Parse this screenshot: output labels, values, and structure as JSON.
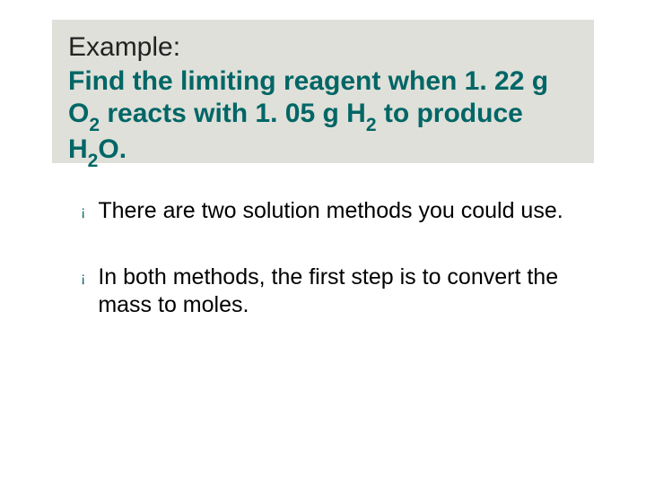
{
  "slide": {
    "title_box": {
      "background_color": "#dfe0d9",
      "label": "Example:",
      "label_color": "#222222",
      "label_fontsize": 30,
      "heading_parts": {
        "p1": "Find the limiting reagent when 1. 22 g O",
        "sub1": "2",
        "p2": " reacts with 1. 05 g H",
        "sub2": "2",
        "p3": " to produce H",
        "sub3": "2",
        "p4": "O."
      },
      "heading_color": "#006666",
      "heading_fontsize": 30,
      "heading_weight": 700
    },
    "bullets": [
      {
        "marker": "¡",
        "text": "There are two solution methods you could use."
      },
      {
        "marker": "¡",
        "text": "In both methods, the first step is to convert the mass to moles."
      }
    ],
    "bullet_marker_color": "#006666",
    "bullet_text_color": "#000000",
    "bullet_fontsize": 25,
    "background_color": "#ffffff"
  }
}
